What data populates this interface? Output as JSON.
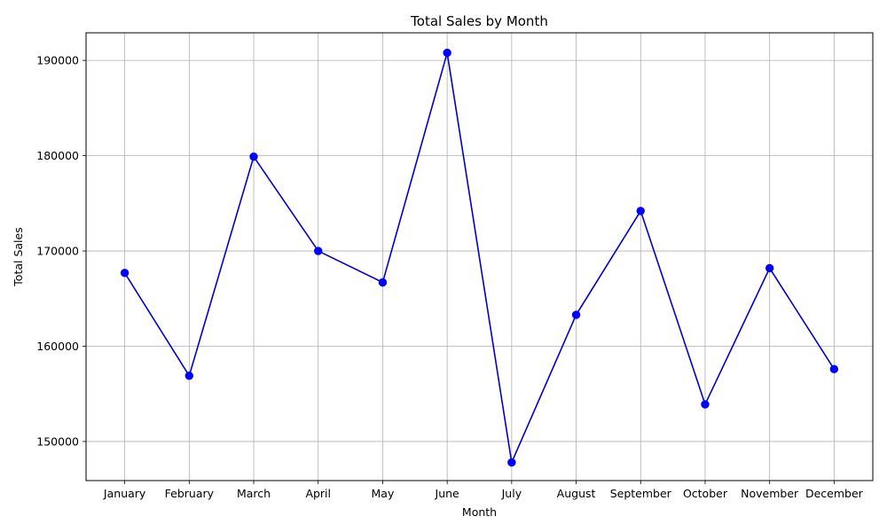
{
  "chart_data": {
    "type": "line",
    "title": "Total Sales by Month",
    "xlabel": "Month",
    "ylabel": "Total Sales",
    "categories": [
      "January",
      "February",
      "March",
      "April",
      "May",
      "June",
      "July",
      "August",
      "September",
      "October",
      "November",
      "December"
    ],
    "series": [
      {
        "values": [
          167700,
          156900,
          179900,
          170000,
          166700,
          190800,
          147800,
          163300,
          174200,
          153900,
          168200,
          157600
        ],
        "color": "#0000cc",
        "marker_color": "#0000ff"
      }
    ],
    "ylim": [
      145900,
      192900
    ],
    "yticks": [
      150000,
      160000,
      170000,
      180000,
      190000
    ],
    "grid": true
  }
}
